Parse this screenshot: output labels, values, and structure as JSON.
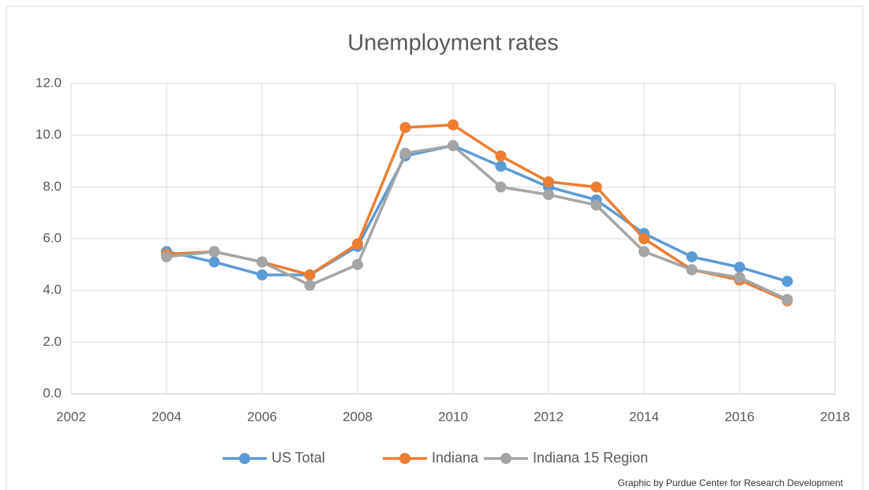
{
  "chart_data": {
    "type": "line",
    "title": "Unemployment rates",
    "annotation": "Graphic by Purdue Center for Research Development",
    "x": [
      2004,
      2005,
      2006,
      2007,
      2008,
      2009,
      2010,
      2011,
      2012,
      2013,
      2014,
      2015,
      2016,
      2017
    ],
    "series": [
      {
        "name": "US Total",
        "color": "#5b9bd5",
        "values": [
          5.5,
          5.1,
          4.6,
          4.6,
          5.7,
          9.2,
          9.6,
          8.8,
          8.0,
          7.5,
          6.2,
          5.3,
          4.9,
          4.35
        ]
      },
      {
        "name": "Indiana",
        "color": "#ed7d31",
        "values": [
          5.4,
          5.5,
          5.1,
          4.6,
          5.8,
          10.3,
          10.4,
          9.2,
          8.2,
          8.0,
          6.0,
          4.8,
          4.4,
          3.6
        ]
      },
      {
        "name": "Indiana 15 Region",
        "color": "#a5a5a5",
        "values": [
          5.3,
          5.5,
          5.1,
          4.2,
          5.0,
          9.3,
          9.6,
          8.0,
          7.7,
          7.3,
          5.5,
          4.8,
          4.5,
          3.65
        ]
      }
    ],
    "xlim": [
      2002,
      2018
    ],
    "xticks": [
      2002,
      2004,
      2006,
      2008,
      2010,
      2012,
      2014,
      2016,
      2018
    ],
    "ylim": [
      0,
      12
    ],
    "yticks": [
      {
        "value": 0,
        "label": "0.0"
      },
      {
        "value": 2,
        "label": "2.0"
      },
      {
        "value": 4,
        "label": "4.0"
      },
      {
        "value": 6,
        "label": "6.0"
      },
      {
        "value": 8,
        "label": "8.0"
      },
      {
        "value": 10,
        "label": "10.0"
      },
      {
        "value": 12,
        "label": "12.0"
      }
    ],
    "grid": true,
    "legend": "bottom"
  }
}
